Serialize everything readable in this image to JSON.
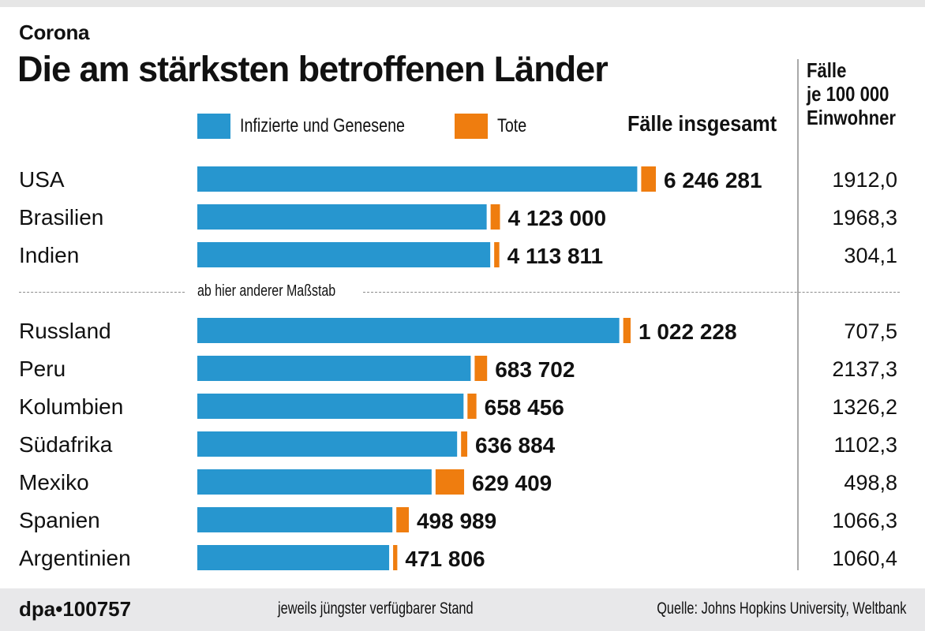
{
  "header": {
    "kicker": "Corona",
    "title": "Die am stärksten betroffenen Länder"
  },
  "legend": [
    {
      "label": "Infizierte und Genesene",
      "color": "#2796cf"
    },
    {
      "label": "Tote",
      "color": "#ef7d0f"
    }
  ],
  "columns": {
    "total_header": "Fälle insgesamt",
    "rate_header_lines": [
      "Fälle",
      "je 100 000",
      "Einwohner"
    ]
  },
  "separator_label": "ab hier anderer Maßstab",
  "footer": {
    "logo": "dpa•100757",
    "note": "jeweils jüngster verfügbarer Stand",
    "source": "Quelle: Johns Hopkins University, Weltbank"
  },
  "chart_data": {
    "type": "bar",
    "orientation": "horizontal",
    "stacked": true,
    "title": "Die am stärksten betroffenen Länder",
    "subtitle": "Corona",
    "legend_position": "top",
    "note": "Two scale groups: first three countries on one scale, remaining countries on a different scale (ab hier anderer Maßstab)",
    "groups": [
      {
        "scale": "group-1",
        "rows": [
          {
            "country": "USA",
            "total": 6246281,
            "total_label": "6 246 281",
            "deaths_share": 0.032,
            "per_100k": "1912,0"
          },
          {
            "country": "Brasilien",
            "total": 4123000,
            "total_label": "4 123 000",
            "deaths_share": 0.031,
            "per_100k": "1968,3"
          },
          {
            "country": "Indien",
            "total": 4113811,
            "total_label": "4 113 811",
            "deaths_share": 0.017,
            "per_100k": "304,1"
          }
        ]
      },
      {
        "scale": "group-2",
        "rows": [
          {
            "country": "Russland",
            "total": 1022228,
            "total_label": "1 022 228",
            "deaths_share": 0.017,
            "per_100k": "707,5"
          },
          {
            "country": "Peru",
            "total": 683702,
            "total_label": "683 702",
            "deaths_share": 0.043,
            "per_100k": "2137,3"
          },
          {
            "country": "Kolumbien",
            "total": 658456,
            "total_label": "658 456",
            "deaths_share": 0.032,
            "per_100k": "1326,2"
          },
          {
            "country": "Südafrika",
            "total": 636884,
            "total_label": "636 884",
            "deaths_share": 0.023,
            "per_100k": "1102,3"
          },
          {
            "country": "Mexiko",
            "total": 629409,
            "total_label": "629 409",
            "deaths_share": 0.107,
            "per_100k": "498,8"
          },
          {
            "country": "Spanien",
            "total": 498989,
            "total_label": "498 989",
            "deaths_share": 0.059,
            "per_100k": "1066,3"
          },
          {
            "country": "Argentinien",
            "total": 471806,
            "total_label": "471 806",
            "deaths_share": 0.021,
            "per_100k": "1060,4"
          }
        ]
      }
    ],
    "series": [
      {
        "name": "Infizierte und Genesene",
        "color": "#2796cf"
      },
      {
        "name": "Tote",
        "color": "#ef7d0f"
      }
    ]
  }
}
